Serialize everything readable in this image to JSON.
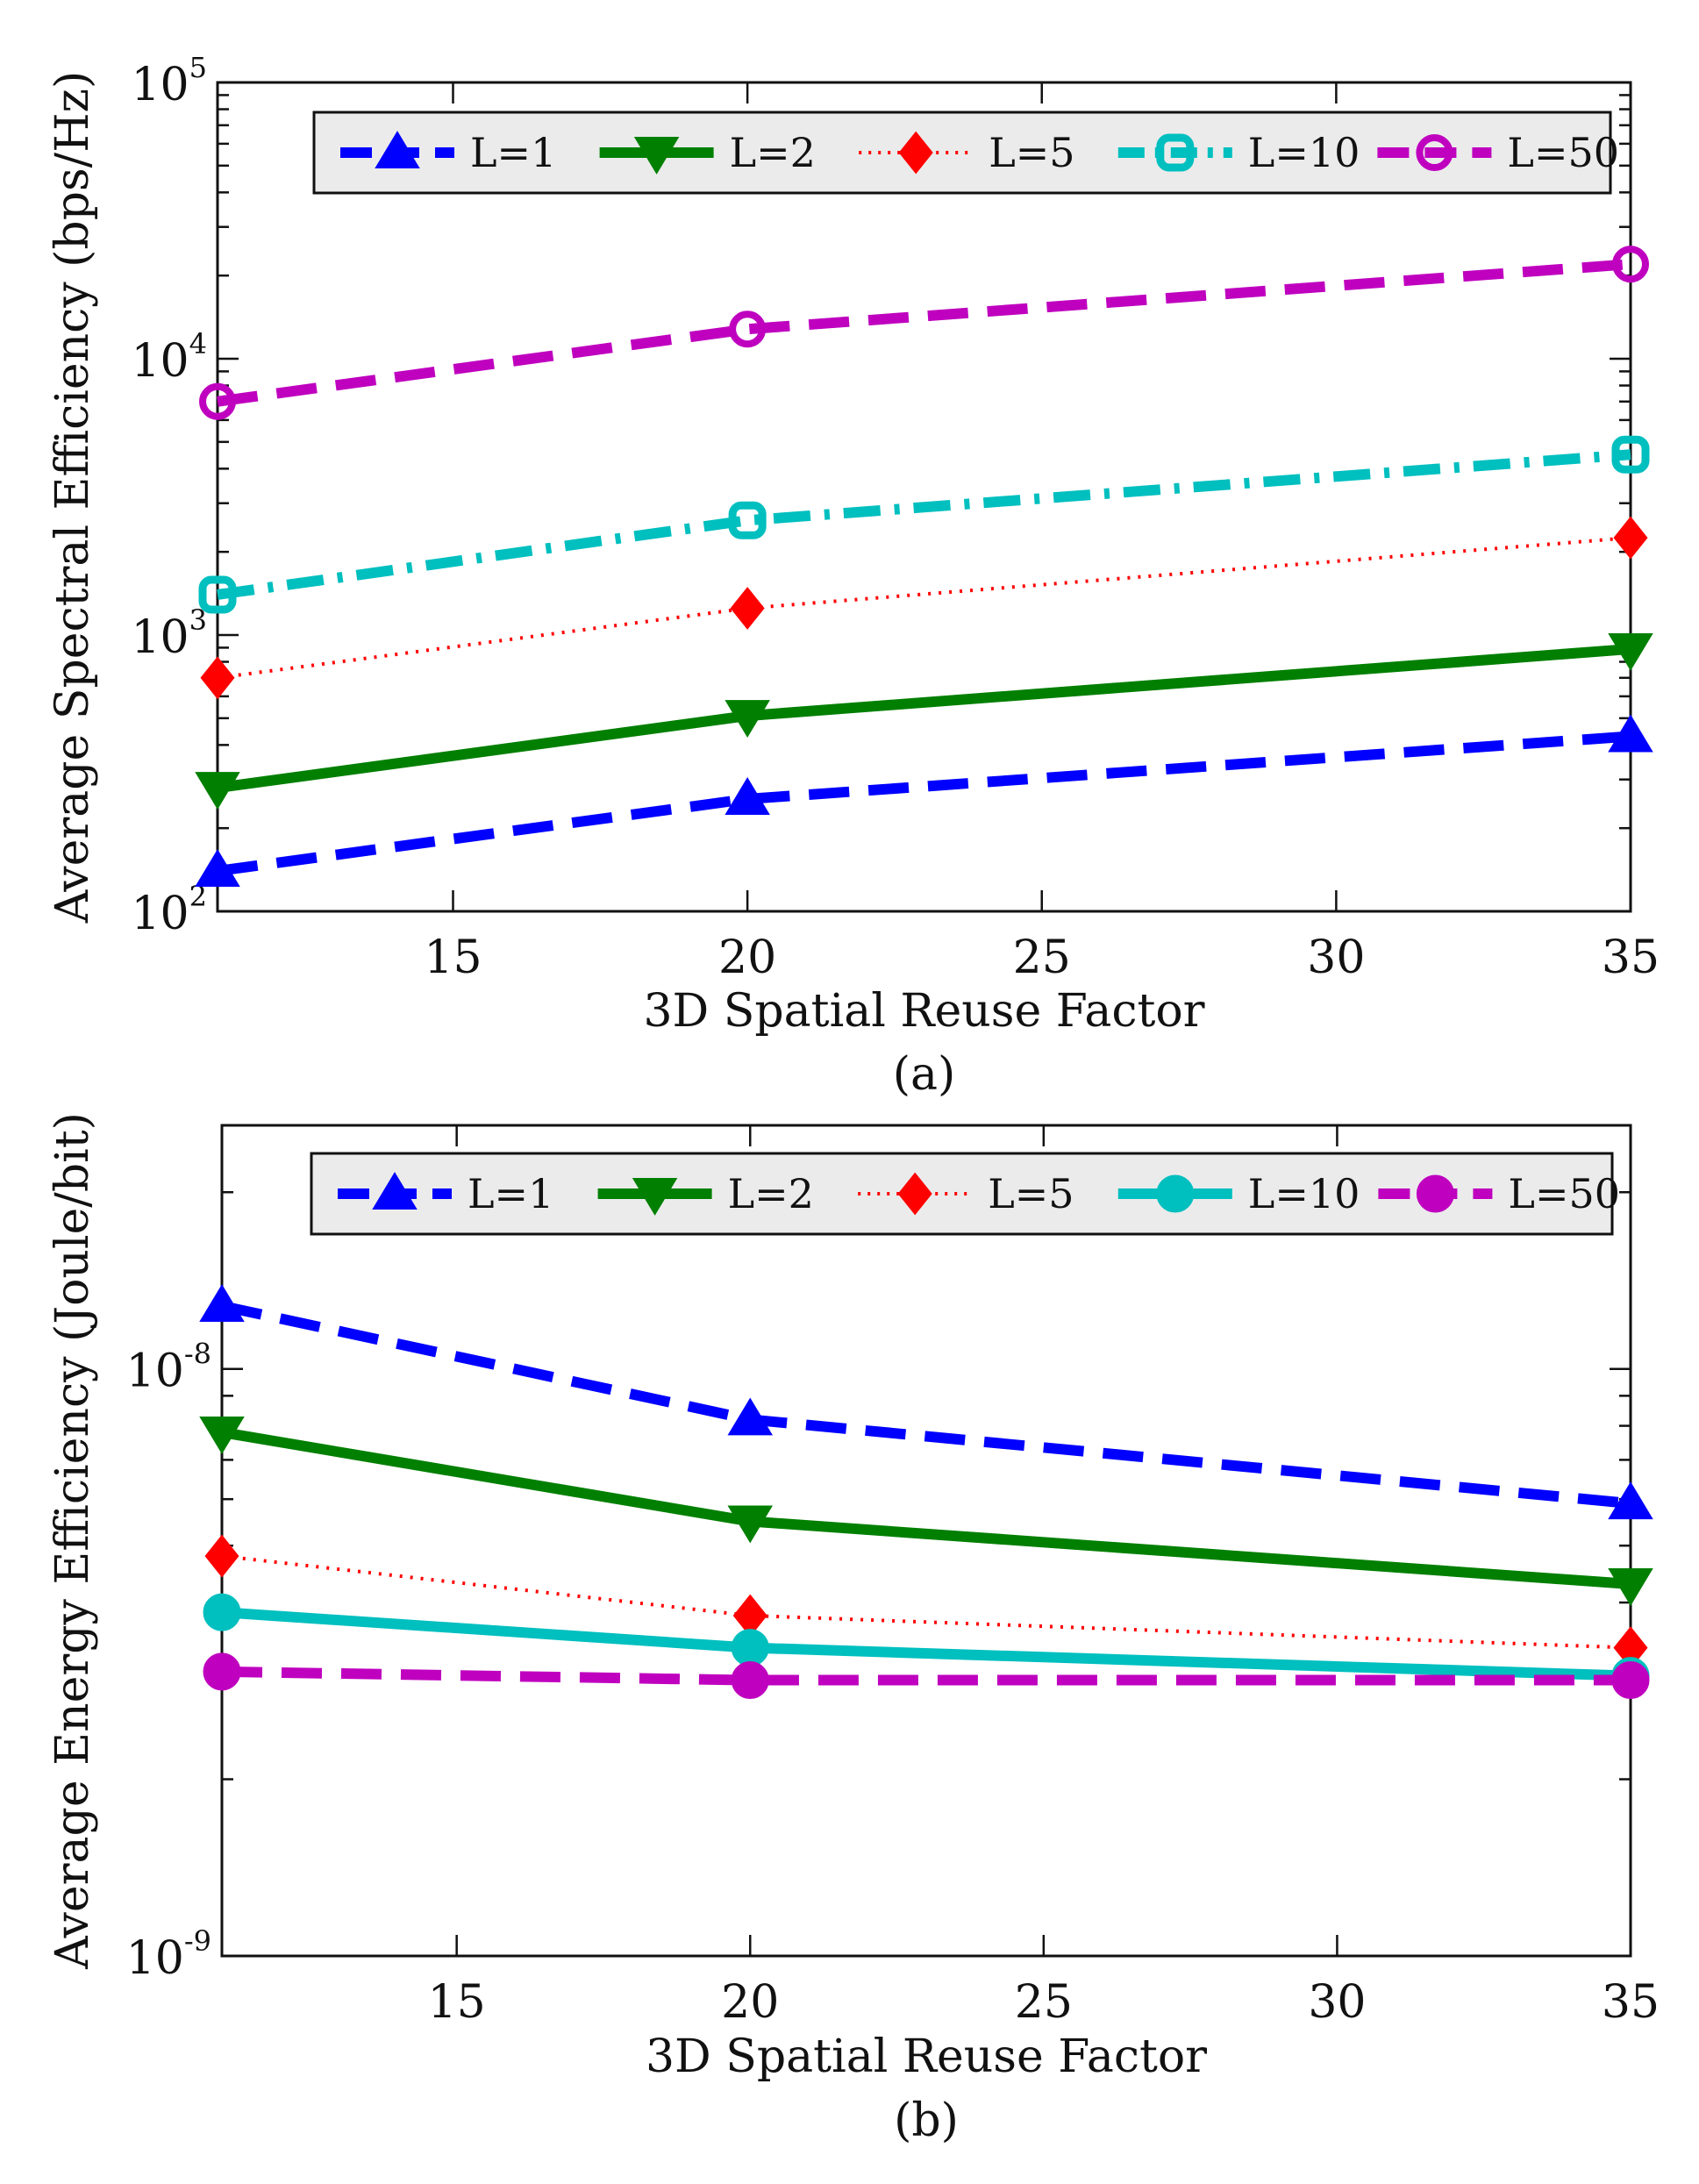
{
  "charts": [
    {
      "id": "a",
      "caption": "(a)",
      "chart_data": {
        "type": "line",
        "xlabel": "3D Spatial Reuse Factor",
        "ylabel": "Average Spectral Efficiency (bps/Hz)",
        "yscale": "log",
        "xlim": [
          11,
          35
        ],
        "ylim": [
          100,
          100000
        ],
        "x_ticks": [
          15,
          20,
          25,
          30,
          35
        ],
        "y_ticks": [
          {
            "base": "10",
            "exp": "2",
            "value": 100
          },
          {
            "base": "10",
            "exp": "3",
            "value": 1000
          },
          {
            "base": "10",
            "exp": "4",
            "value": 10000
          },
          {
            "base": "10",
            "exp": "5",
            "value": 100000
          }
        ],
        "grid": false,
        "legend_position": "top",
        "x": [
          11,
          20,
          35
        ],
        "series": [
          {
            "name": "L=1",
            "values": [
              140,
              255,
              430
            ],
            "color": "#0000ff",
            "dash": "dashed",
            "marker": "triangle-up"
          },
          {
            "name": "L=2",
            "values": [
              280,
              510,
              890
            ],
            "color": "#007f00",
            "dash": "solid",
            "marker": "triangle-down"
          },
          {
            "name": "L=5",
            "values": [
              700,
              1250,
              2250
            ],
            "color": "#ff0000",
            "dash": "dotted",
            "marker": "diamond"
          },
          {
            "name": "L=10",
            "values": [
              1400,
              2600,
              4500
            ],
            "color": "#00bfbf",
            "dash": "dashdot",
            "marker": "square-open"
          },
          {
            "name": "L=50",
            "values": [
              7000,
              12800,
              22000
            ],
            "color": "#bf00bf",
            "dash": "dashed",
            "marker": "circle-open"
          }
        ]
      }
    },
    {
      "id": "b",
      "caption": "(b)",
      "chart_data": {
        "type": "line",
        "xlabel": "3D Spatial Reuse Factor",
        "ylabel": "Average Energy Efficiency (Joule/bit)",
        "yscale": "log",
        "xlim": [
          11,
          35
        ],
        "ylim": [
          1e-09,
          2.6e-08
        ],
        "x_ticks": [
          15,
          20,
          25,
          30,
          35
        ],
        "y_ticks": [
          {
            "base": "10",
            "exp": "-9",
            "value": 1e-09
          },
          {
            "base": "10",
            "exp": "-8",
            "value": 1e-08
          }
        ],
        "grid": false,
        "legend_position": "top",
        "x": [
          11,
          20,
          35
        ],
        "series": [
          {
            "name": "L=1",
            "values": [
              1.28e-08,
              8.2e-09,
              5.9e-09
            ],
            "color": "#0000ff",
            "dash": "dashed",
            "marker": "triangle-up"
          },
          {
            "name": "L=2",
            "values": [
              7.8e-09,
              5.5e-09,
              4.3e-09
            ],
            "color": "#007f00",
            "dash": "solid",
            "marker": "triangle-down"
          },
          {
            "name": "L=5",
            "values": [
              4.8e-09,
              3.8e-09,
              3.35e-09
            ],
            "color": "#ff0000",
            "dash": "dotted",
            "marker": "diamond"
          },
          {
            "name": "L=10",
            "values": [
              3.85e-09,
              3.35e-09,
              3e-09
            ],
            "color": "#00bfbf",
            "dash": "solid",
            "marker": "circle-filled"
          },
          {
            "name": "L=50",
            "values": [
              3.05e-09,
              2.95e-09,
              2.95e-09
            ],
            "color": "#bf00bf",
            "dash": "dashed",
            "marker": "circle-filled"
          }
        ]
      }
    }
  ]
}
